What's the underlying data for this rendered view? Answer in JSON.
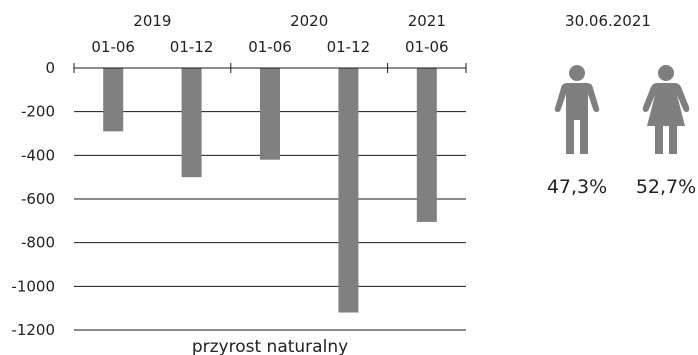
{
  "chart_data": {
    "type": "bar",
    "xlabel": "przyrost naturalny",
    "ylabel": "",
    "ylim": [
      -1200,
      0
    ],
    "yticks": [
      0,
      -200,
      -400,
      -600,
      -800,
      -1000,
      -1200
    ],
    "categories": [
      "01-06",
      "01-12",
      "01-06",
      "01-12",
      "01-06"
    ],
    "years": [
      "2019",
      "2020",
      "2021"
    ],
    "values": [
      -290,
      -500,
      -420,
      -1120,
      -705
    ],
    "grid": true,
    "bar_color": "#808080"
  },
  "side_panel": {
    "date": "30.06.2021",
    "male_pct": "47,3%",
    "female_pct": "52,7%",
    "male_icon": "male-person-icon",
    "female_icon": "female-person-icon",
    "icon_color": "#7f7f7f"
  }
}
